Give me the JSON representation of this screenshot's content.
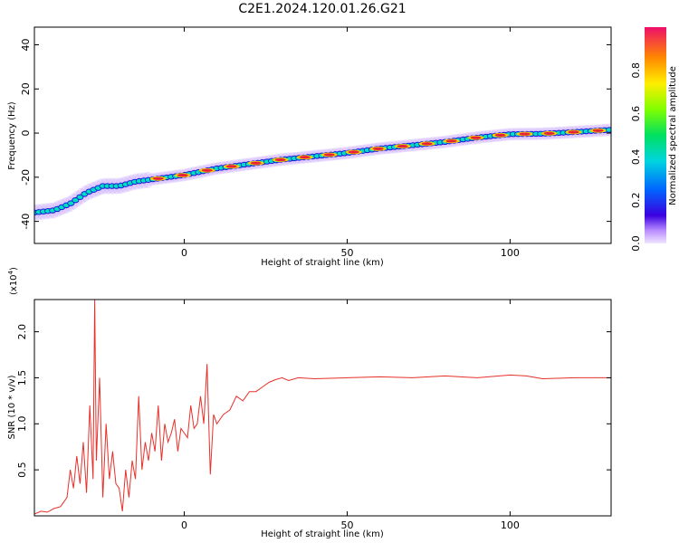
{
  "title": "C2E1.2024.120.01.26.G21",
  "colors": {
    "snr_line": "#e8302a",
    "ridge_peak": "#e8213a",
    "ridge_core": "#00e0c0",
    "halo": "#c8a6ff",
    "axis": "#000000"
  },
  "chart_data": [
    {
      "type": "heatmap",
      "title": "C2E1.2024.120.01.26.G21",
      "xlabel": "Height of straight line (km)",
      "ylabel": "Frequency (Hz)",
      "xlim": [
        -46,
        131
      ],
      "ylim": [
        -50,
        48
      ],
      "xticks": [
        0,
        50,
        100
      ],
      "yticks": [
        -40,
        -20,
        0,
        20,
        40
      ],
      "ridge": {
        "x": [
          -46,
          -40,
          -35,
          -30,
          -25,
          -20,
          -15,
          -10,
          -5,
          0,
          10,
          20,
          30,
          40,
          50,
          60,
          70,
          80,
          90,
          100,
          110,
          120,
          131
        ],
        "y": [
          -36,
          -35,
          -32,
          -27,
          -24,
          -24,
          -22,
          -21,
          -20,
          -19,
          -16,
          -14,
          -12,
          -10.5,
          -9,
          -7,
          -5.5,
          -4,
          -2,
          -0.5,
          -0.3,
          0.5,
          1.5
        ]
      },
      "colorbar": {
        "label": "Normalized spectral amplitude",
        "range": [
          0,
          1
        ],
        "ticks": [
          "0.0",
          "0.2",
          "0.4",
          "0.6",
          "0.8"
        ],
        "tick_values": [
          0.0,
          0.2,
          0.4,
          0.6,
          0.8
        ]
      }
    },
    {
      "type": "line",
      "xlabel": "Height of straight line (km)",
      "ylabel": "SNR (10 * v/v)",
      "yscale_label": "(x10",
      "yscale_exp": "4",
      "yscale_close": ")",
      "xlim": [
        -46,
        131
      ],
      "ylim": [
        0,
        2.35
      ],
      "xticks": [
        0,
        50,
        100
      ],
      "yticks": [
        "0.5",
        "1.0",
        "1.5",
        "2.0"
      ],
      "ytick_values": [
        0.5,
        1.0,
        1.5,
        2.0
      ],
      "series": [
        {
          "x": [
            -46,
            -44,
            -42,
            -40,
            -38,
            -36,
            -35,
            -34,
            -33,
            -32,
            -31,
            -30,
            -29,
            -28,
            -27.5,
            -27,
            -26,
            -25,
            -24,
            -23,
            -22,
            -21,
            -20,
            -19,
            -18,
            -17,
            -16,
            -15,
            -14,
            -13,
            -12,
            -11,
            -10,
            -9,
            -8,
            -7,
            -6,
            -5,
            -4,
            -3,
            -2,
            -1,
            0,
            1,
            2,
            3,
            4,
            5,
            6,
            7,
            8,
            9,
            10,
            12,
            14,
            16,
            18,
            20,
            22,
            24,
            26,
            28,
            30,
            32,
            35,
            40,
            50,
            60,
            70,
            80,
            90,
            100,
            105,
            110,
            120,
            131
          ],
          "y": [
            0.02,
            0.05,
            0.04,
            0.08,
            0.1,
            0.2,
            0.5,
            0.3,
            0.65,
            0.35,
            0.8,
            0.25,
            1.2,
            0.4,
            2.35,
            0.6,
            1.5,
            0.2,
            1.0,
            0.4,
            0.7,
            0.35,
            0.3,
            0.05,
            0.5,
            0.2,
            0.6,
            0.4,
            1.3,
            0.5,
            0.8,
            0.6,
            0.9,
            0.7,
            1.2,
            0.6,
            1.0,
            0.8,
            0.9,
            1.05,
            0.7,
            0.95,
            0.9,
            0.85,
            1.2,
            0.95,
            1.0,
            1.3,
            1.0,
            1.65,
            0.45,
            1.1,
            1.0,
            1.1,
            1.15,
            1.3,
            1.25,
            1.35,
            1.35,
            1.4,
            1.45,
            1.48,
            1.5,
            1.47,
            1.5,
            1.49,
            1.5,
            1.51,
            1.5,
            1.52,
            1.5,
            1.53,
            1.52,
            1.49,
            1.5,
            1.5
          ]
        }
      ]
    }
  ]
}
